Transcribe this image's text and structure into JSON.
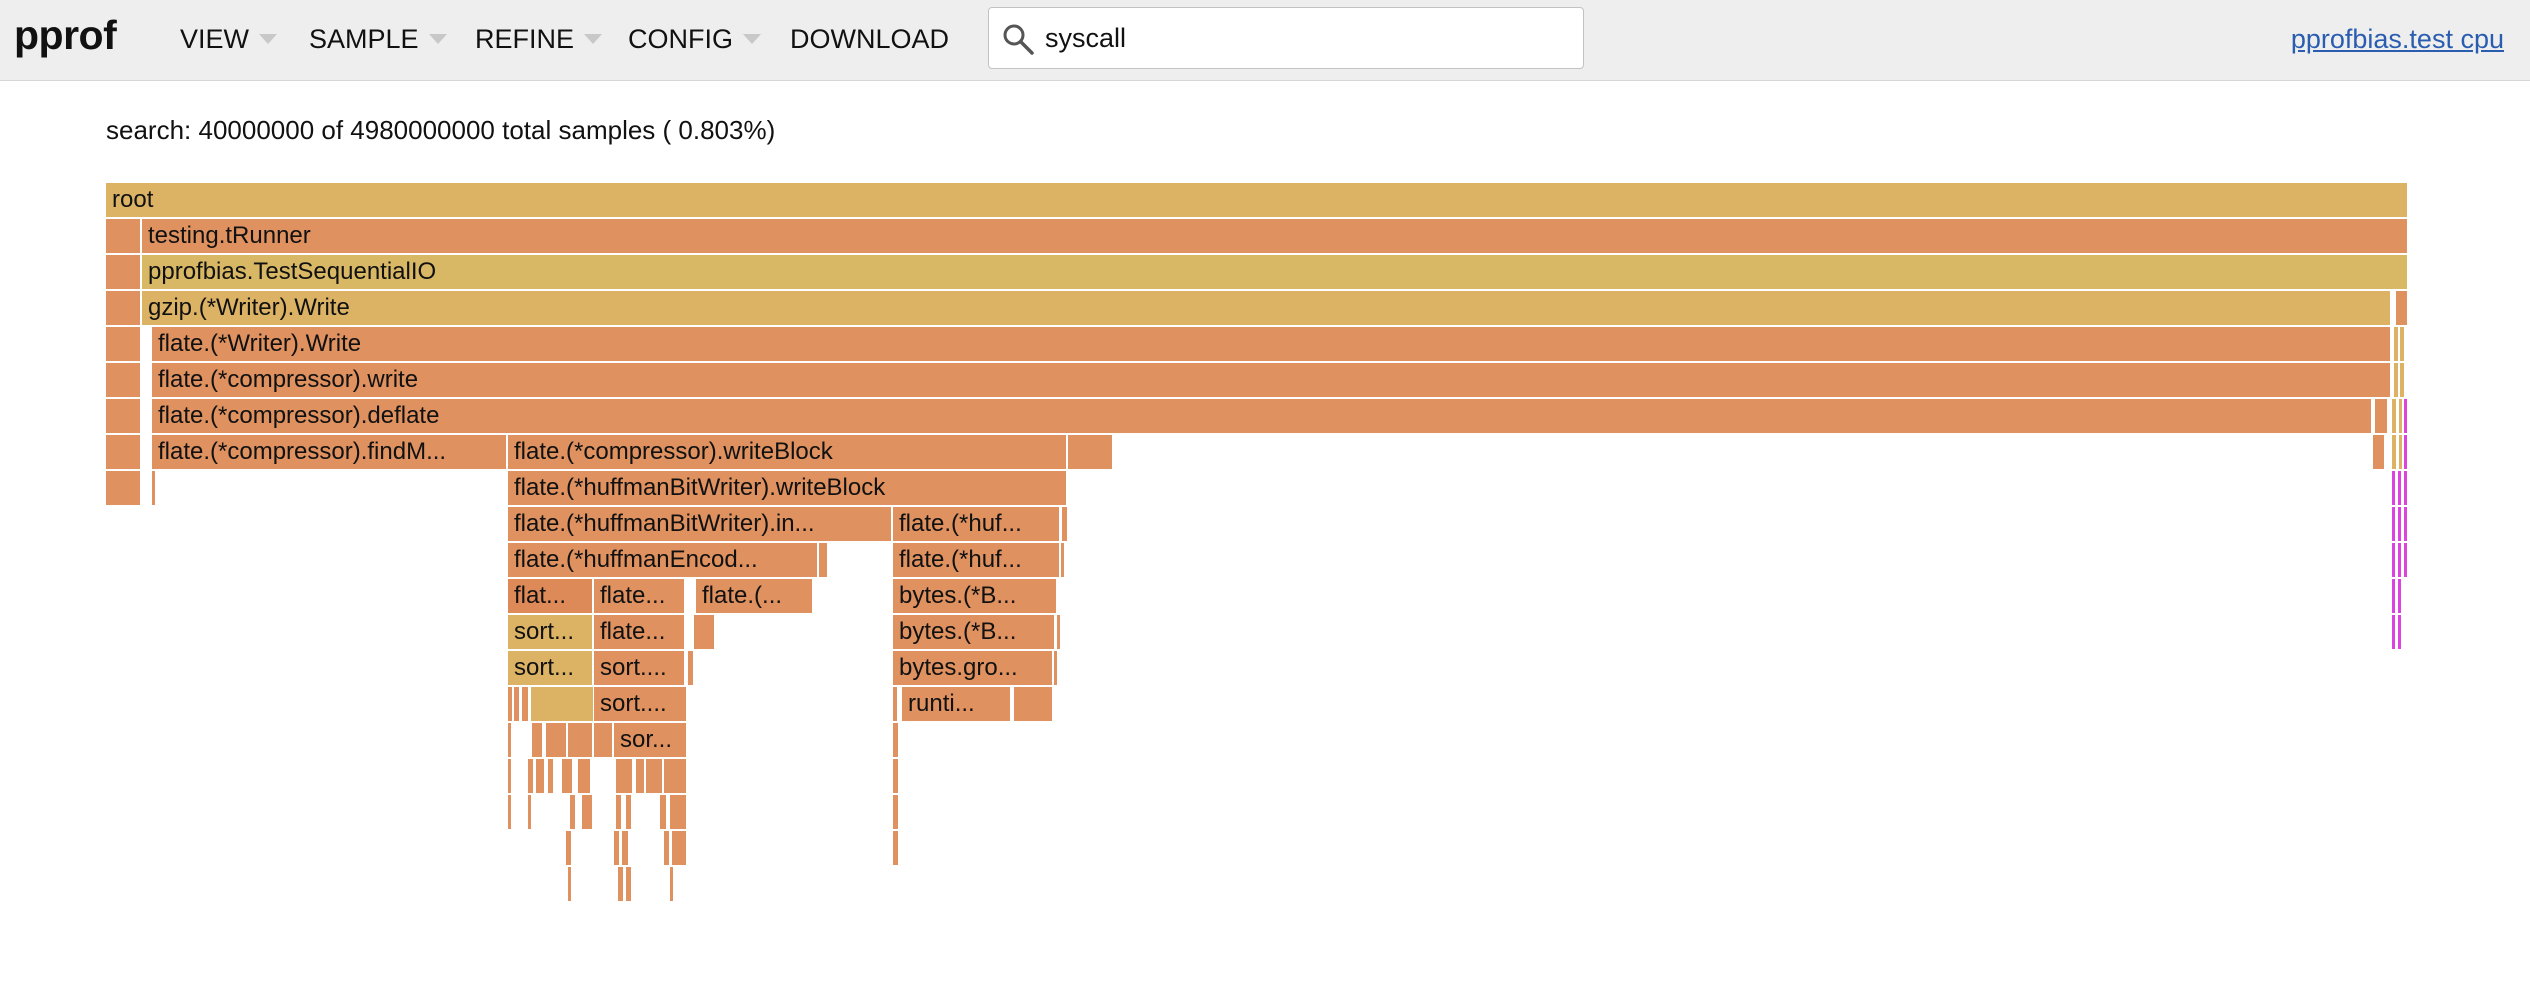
{
  "app": {
    "logo": "pprof"
  },
  "menu": [
    {
      "label": "VIEW",
      "dropdown": true
    },
    {
      "label": "SAMPLE",
      "dropdown": true
    },
    {
      "label": "REFINE",
      "dropdown": true
    },
    {
      "label": "CONFIG",
      "dropdown": true
    },
    {
      "label": "DOWNLOAD",
      "dropdown": false
    }
  ],
  "search": {
    "value": "syscall",
    "icon": "search-icon"
  },
  "profile_link": "pprofbias.test cpu",
  "summary": "search: 40000000 of 4980000000 total samples ( 0.803%)",
  "colors": {
    "header_bg": "#eeeeee",
    "frame_yellow": "#dcb365",
    "frame_yellow_light": "#d8b864",
    "frame_orange": "#df915f",
    "frame_orange_dark": "#de8a58",
    "frame_highlight": "#dd44dd",
    "link": "#2a5db0"
  },
  "flame_frames": [
    {
      "name": "root"
    },
    {
      "name": "testing.tRunner"
    },
    {
      "name": "pprofbias.TestSequentialIO"
    },
    {
      "name": "gzip.(*Writer).Write"
    },
    {
      "name": "flate.(*Writer).Write"
    },
    {
      "name": "flate.(*compressor).write"
    },
    {
      "name": "flate.(*compressor).deflate"
    },
    {
      "name": "flate.(*compressor).findM..."
    },
    {
      "name": "flate.(*compressor).writeBlock"
    },
    {
      "name": "flate.(*huffmanBitWriter).writeBlock"
    },
    {
      "name": "flate.(*huffmanBitWriter).in..."
    },
    {
      "name": "flate.(*huf..."
    },
    {
      "name": "flate.(*huffmanEncod..."
    },
    {
      "name": "flate.(*huf..."
    },
    {
      "name": "flat..."
    },
    {
      "name": "flate..."
    },
    {
      "name": "flate.(..."
    },
    {
      "name": "bytes.(*B..."
    },
    {
      "name": "sort..."
    },
    {
      "name": "flate..."
    },
    {
      "name": "bytes.(*B..."
    },
    {
      "name": "sort..."
    },
    {
      "name": "sort...."
    },
    {
      "name": "bytes.gro..."
    },
    {
      "name": "sort...."
    },
    {
      "name": "runti..."
    },
    {
      "name": "sor..."
    }
  ]
}
